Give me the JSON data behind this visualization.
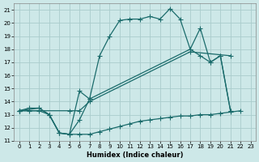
{
  "xlabel": "Humidex (Indice chaleur)",
  "bg_color": "#cde8e8",
  "grid_color": "#aacccc",
  "line_color": "#1a6b6b",
  "xlim": [
    -0.5,
    23.5
  ],
  "ylim": [
    11,
    21.5
  ],
  "xticks": [
    0,
    1,
    2,
    3,
    4,
    5,
    6,
    7,
    8,
    9,
    10,
    11,
    12,
    13,
    14,
    15,
    16,
    17,
    18,
    19,
    20,
    21,
    22,
    23
  ],
  "yticks": [
    11,
    12,
    13,
    14,
    15,
    16,
    17,
    18,
    19,
    20,
    21
  ],
  "curve1_x": [
    0,
    1,
    2,
    3,
    4,
    5,
    6,
    7,
    8,
    9,
    10,
    11,
    12,
    13,
    14,
    15,
    16,
    17,
    18,
    19,
    20,
    21
  ],
  "curve1_y": [
    13.3,
    13.5,
    13.5,
    13.0,
    11.6,
    11.5,
    12.6,
    14.2,
    17.5,
    19.0,
    20.2,
    20.3,
    20.3,
    20.5,
    20.3,
    21.1,
    20.3,
    18.0,
    19.6,
    17.0,
    17.5,
    13.3
  ],
  "curve2_x": [
    0,
    2,
    3,
    4,
    5,
    6,
    7,
    17,
    18,
    19,
    20,
    21
  ],
  "curve2_y": [
    13.3,
    13.5,
    13.0,
    11.6,
    11.5,
    14.8,
    14.2,
    18.0,
    17.5,
    17.0,
    17.5,
    13.3
  ],
  "curve3_x": [
    0,
    5,
    6,
    7,
    17,
    21
  ],
  "curve3_y": [
    13.3,
    13.3,
    13.3,
    14.0,
    17.8,
    17.5
  ],
  "curve4_x": [
    0,
    1,
    2,
    3,
    4,
    5,
    6,
    7,
    8,
    9,
    10,
    11,
    12,
    13,
    14,
    15,
    16,
    17,
    18,
    19,
    20,
    21,
    22
  ],
  "curve4_y": [
    13.3,
    13.3,
    13.3,
    13.0,
    11.6,
    11.5,
    11.5,
    11.5,
    11.7,
    11.9,
    12.1,
    12.3,
    12.5,
    12.6,
    12.7,
    12.8,
    12.9,
    12.9,
    13.0,
    13.0,
    13.1,
    13.2,
    13.3
  ]
}
